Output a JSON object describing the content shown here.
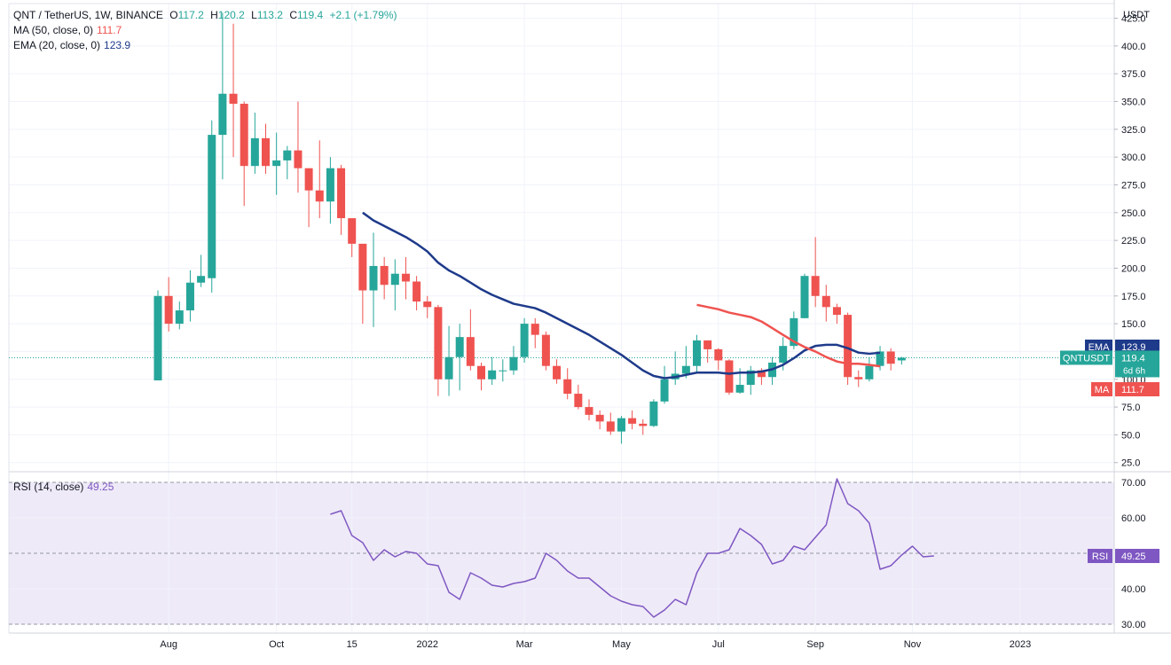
{
  "header": {
    "symbol": "QNT / TetherUS, 1W, BINANCE",
    "o_label": "O",
    "o_value": "117.2",
    "h_label": "H",
    "h_value": "120.2",
    "l_label": "L",
    "l_value": "113.2",
    "c_label": "C",
    "c_value": "119.4",
    "change": "+2.1 (+1.79%)"
  },
  "legend": {
    "ma_label": "MA (50, close, 0)",
    "ma_value": "111.7",
    "ema_label": "EMA (20, close, 0)",
    "ema_value": "123.9",
    "rsi_label": "RSI (14, close)",
    "rsi_value": "49.25"
  },
  "colors": {
    "up": "#26a69a",
    "down": "#ef5350",
    "ema": "#1e3a8a",
    "ma": "#ef5350",
    "rsi": "#7e57c2",
    "rsi_band": "#efeaf8",
    "ticker_tag": "#26a69a"
  },
  "chart_data": [
    {
      "type": "candlestick",
      "ylabel": "USDT",
      "ylim": [
        20,
        435
      ],
      "y_ticks": [
        25,
        50,
        75,
        100,
        125,
        150,
        175,
        200,
        225,
        250,
        275,
        300,
        325,
        350,
        375,
        400,
        425
      ],
      "x_labels": [
        "Aug",
        "Oct",
        "15",
        "2022",
        "Mar",
        "May",
        "Jul",
        "Sep",
        "Nov",
        "2023"
      ],
      "x_label_index": [
        1,
        11,
        18,
        25,
        34,
        43,
        52,
        61,
        70,
        80
      ],
      "candles": [
        [
          99,
          175,
          180,
          99
        ],
        [
          175,
          150,
          192,
          143
        ],
        [
          150,
          162,
          170,
          145
        ],
        [
          162,
          187,
          198,
          152
        ],
        [
          187,
          193,
          212,
          183
        ],
        [
          191,
          320,
          333,
          178
        ],
        [
          320,
          357,
          430,
          280
        ],
        [
          357,
          348,
          420,
          300
        ],
        [
          348,
          292,
          350,
          256
        ],
        [
          292,
          317,
          340,
          285
        ],
        [
          317,
          292,
          330,
          285
        ],
        [
          292,
          297,
          322,
          266
        ],
        [
          297,
          306,
          310,
          280
        ],
        [
          306,
          290,
          350,
          268
        ],
        [
          290,
          270,
          280,
          237
        ],
        [
          270,
          260,
          315,
          245
        ],
        [
          260,
          290,
          300,
          240
        ],
        [
          290,
          245,
          293,
          230
        ],
        [
          245,
          222,
          240,
          210
        ],
        [
          222,
          180,
          215,
          150
        ],
        [
          180,
          202,
          232,
          147
        ],
        [
          202,
          185,
          210,
          172
        ],
        [
          185,
          195,
          208,
          162
        ],
        [
          195,
          188,
          210,
          172
        ],
        [
          188,
          170,
          193,
          162
        ],
        [
          170,
          165,
          175,
          155
        ],
        [
          165,
          100,
          167,
          85
        ],
        [
          100,
          120,
          148,
          85
        ],
        [
          120,
          138,
          150,
          90
        ],
        [
          138,
          112,
          163,
          108
        ],
        [
          112,
          100,
          115,
          90
        ],
        [
          100,
          108,
          120,
          95
        ],
        [
          108,
          108,
          118,
          98
        ],
        [
          108,
          120,
          130,
          104
        ],
        [
          120,
          150,
          155,
          115
        ],
        [
          150,
          140,
          155,
          128
        ],
        [
          140,
          112,
          143,
          108
        ],
        [
          112,
          100,
          118,
          96
        ],
        [
          100,
          87,
          110,
          82
        ],
        [
          87,
          75,
          95,
          73
        ],
        [
          75,
          68,
          82,
          63
        ],
        [
          68,
          62,
          72,
          55
        ],
        [
          62,
          53,
          70,
          50
        ],
        [
          53,
          65,
          67,
          42
        ],
        [
          65,
          60,
          72,
          55
        ],
        [
          60,
          58,
          64,
          50
        ],
        [
          58,
          80,
          82,
          57
        ],
        [
          80,
          100,
          112,
          78
        ],
        [
          100,
          105,
          125,
          95
        ],
        [
          105,
          112,
          130,
          101
        ],
        [
          112,
          135,
          140,
          107
        ],
        [
          135,
          127,
          135,
          115
        ],
        [
          127,
          117,
          128,
          108
        ],
        [
          117,
          88,
          118,
          86
        ],
        [
          88,
          95,
          110,
          87
        ],
        [
          95,
          108,
          112,
          86
        ],
        [
          108,
          102,
          110,
          95
        ],
        [
          102,
          115,
          120,
          95
        ],
        [
          115,
          130,
          138,
          108
        ],
        [
          130,
          155,
          161,
          127
        ],
        [
          155,
          193,
          195,
          155
        ],
        [
          193,
          175,
          228,
          165
        ],
        [
          175,
          165,
          185,
          152
        ],
        [
          165,
          158,
          168,
          150
        ],
        [
          158,
          102,
          160,
          95
        ],
        [
          102,
          100,
          108,
          93
        ],
        [
          100,
          112,
          120,
          98
        ],
        [
          112,
          125,
          130,
          108
        ],
        [
          125,
          114,
          128,
          108
        ],
        [
          117,
          119.4,
          120.2,
          113.2
        ]
      ],
      "ema_20": [
        [
          19,
          250
        ],
        [
          20,
          243
        ],
        [
          21,
          238
        ],
        [
          22,
          233
        ],
        [
          23,
          228
        ],
        [
          24,
          222
        ],
        [
          25,
          215
        ],
        [
          26,
          205
        ],
        [
          27,
          198
        ],
        [
          28,
          193
        ],
        [
          29,
          187
        ],
        [
          30,
          181
        ],
        [
          31,
          176
        ],
        [
          32,
          172
        ],
        [
          33,
          168
        ],
        [
          34,
          166
        ],
        [
          35,
          164
        ],
        [
          36,
          160
        ],
        [
          37,
          155
        ],
        [
          38,
          150
        ],
        [
          39,
          145
        ],
        [
          40,
          140
        ],
        [
          41,
          134
        ],
        [
          42,
          128
        ],
        [
          43,
          122
        ],
        [
          44,
          115
        ],
        [
          45,
          108
        ],
        [
          46,
          103
        ],
        [
          47,
          101
        ],
        [
          48,
          102
        ],
        [
          49,
          104
        ],
        [
          50,
          106
        ],
        [
          51,
          106
        ],
        [
          52,
          106
        ],
        [
          53,
          105
        ],
        [
          54,
          106
        ],
        [
          55,
          106
        ],
        [
          56,
          107
        ],
        [
          57,
          109
        ],
        [
          58,
          113
        ],
        [
          59,
          119
        ],
        [
          60,
          126
        ],
        [
          61,
          130
        ],
        [
          62,
          131
        ],
        [
          63,
          131
        ],
        [
          64,
          128
        ],
        [
          65,
          124
        ],
        [
          66,
          123
        ],
        [
          67,
          123.9
        ]
      ],
      "ma_50": [
        [
          41,
          167
        ],
        [
          42,
          165
        ],
        [
          43,
          163
        ],
        [
          44,
          160
        ],
        [
          45,
          158
        ],
        [
          46,
          156
        ],
        [
          47,
          152
        ],
        [
          48,
          146
        ],
        [
          49,
          140
        ],
        [
          50,
          134
        ],
        [
          51,
          129
        ],
        [
          52,
          125
        ],
        [
          53,
          120
        ],
        [
          54,
          116
        ],
        [
          55,
          114
        ],
        [
          56,
          114
        ],
        [
          57,
          113
        ],
        [
          58,
          111.7
        ]
      ],
      "ma_offset": 9,
      "price_tags": [
        {
          "label": "EMA",
          "value": "123.9"
        },
        {
          "label": "QNTUSDT",
          "value": "119.4",
          "sub": "6d 6h"
        },
        {
          "label": "MA",
          "value": "111.7"
        }
      ]
    },
    {
      "type": "line",
      "name": "RSI (14, close)",
      "ylim": [
        28,
        72
      ],
      "y_ticks": [
        30,
        40,
        50,
        60,
        70
      ],
      "band": [
        30,
        70
      ],
      "values": [
        [
          16,
          61
        ],
        [
          17,
          62
        ],
        [
          18,
          55
        ],
        [
          19,
          53
        ],
        [
          20,
          48
        ],
        [
          21,
          51
        ],
        [
          22,
          49
        ],
        [
          23,
          50.5
        ],
        [
          24,
          50
        ],
        [
          25,
          47
        ],
        [
          26,
          46.5
        ],
        [
          27,
          39
        ],
        [
          28,
          37
        ],
        [
          29,
          44.5
        ],
        [
          30,
          43
        ],
        [
          31,
          41
        ],
        [
          32,
          40.5
        ],
        [
          33,
          41.5
        ],
        [
          34,
          42
        ],
        [
          35,
          43
        ],
        [
          36,
          50
        ],
        [
          37,
          48
        ],
        [
          38,
          45
        ],
        [
          39,
          43
        ],
        [
          40,
          43
        ],
        [
          41,
          40.5
        ],
        [
          42,
          38
        ],
        [
          43,
          36.5
        ],
        [
          44,
          35.5
        ],
        [
          45,
          35
        ],
        [
          46,
          32
        ],
        [
          47,
          34
        ],
        [
          48,
          37
        ],
        [
          49,
          35.5
        ],
        [
          50,
          44.5
        ],
        [
          51,
          50
        ],
        [
          52,
          50
        ],
        [
          53,
          51
        ],
        [
          54,
          57
        ],
        [
          55,
          55
        ],
        [
          56,
          52.5
        ],
        [
          57,
          47
        ],
        [
          58,
          48
        ],
        [
          59,
          52
        ],
        [
          60,
          51
        ],
        [
          61,
          54.5
        ],
        [
          62,
          58
        ],
        [
          63,
          71
        ],
        [
          64,
          64
        ],
        [
          65,
          62
        ],
        [
          66,
          58.5
        ],
        [
          67,
          45.5
        ],
        [
          68,
          46.5
        ],
        [
          69,
          49.5
        ],
        [
          70,
          52
        ],
        [
          71,
          49
        ],
        [
          72,
          49.25
        ]
      ],
      "rsi_offset": 0
    }
  ]
}
